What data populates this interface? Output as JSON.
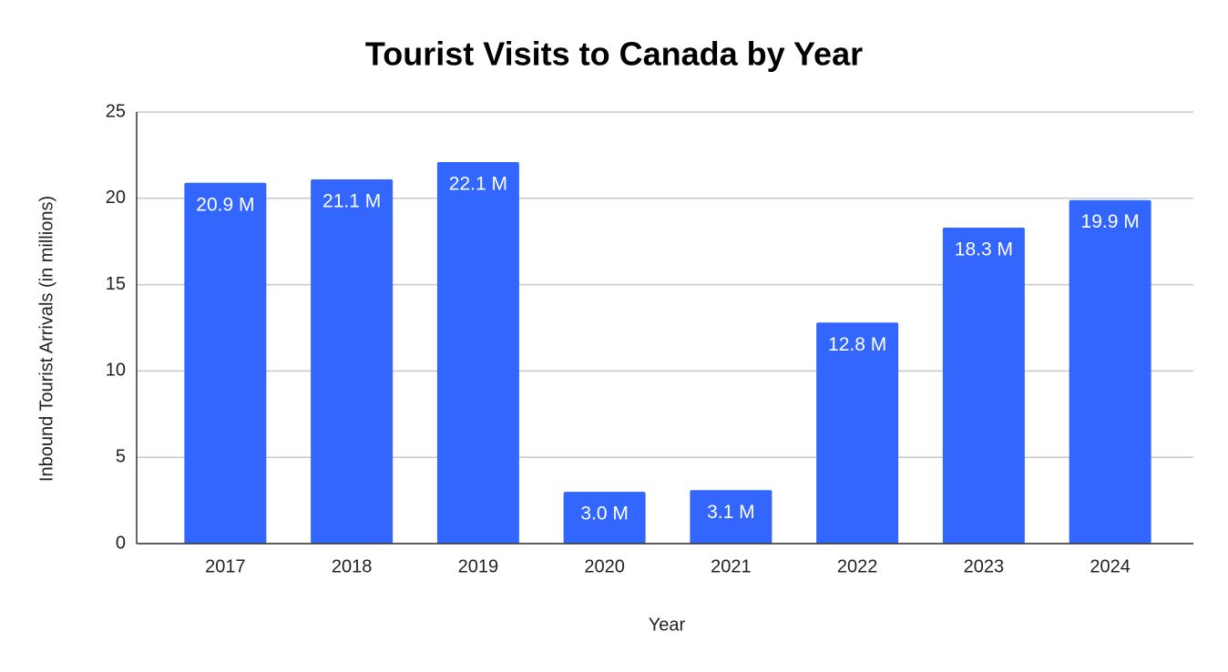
{
  "chart_data": {
    "type": "bar",
    "title": "Tourist Visits to Canada by Year",
    "x_label": "Year",
    "y_label": "Inbound Tourist Arrivals (in millions)",
    "categories": [
      "2017",
      "2018",
      "2019",
      "2020",
      "2021",
      "2022",
      "2023",
      "2024"
    ],
    "values": [
      20.9,
      21.1,
      22.1,
      3.0,
      3.1,
      12.8,
      18.3,
      19.9
    ],
    "value_labels": [
      "20.9 M",
      "21.1 M",
      "22.1 M",
      "3.0 M",
      "3.1 M",
      "12.8 M",
      "18.3 M",
      "19.9 M"
    ],
    "color": "#3366ff",
    "ylim": [
      0,
      25
    ],
    "yticks": [
      0,
      5,
      10,
      15,
      20,
      25
    ],
    "grid": true
  }
}
